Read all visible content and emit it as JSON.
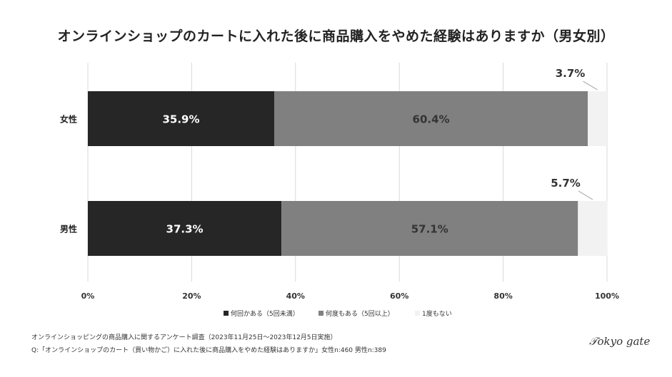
{
  "chart_data": {
    "type": "bar",
    "orientation": "horizontal",
    "stacked": true,
    "title": "オンラインショップのカートに入れた後に商品購入をやめた経験はありますか（男女別）",
    "categories": [
      "女性",
      "男性"
    ],
    "series": [
      {
        "name": "何回かある（5回未満）",
        "values": [
          35.9,
          37.3
        ],
        "labels": [
          "35.9%",
          "37.3%"
        ],
        "color": "#262626"
      },
      {
        "name": "何度もある（5回以上）",
        "values": [
          60.4,
          57.1
        ],
        "labels": [
          "60.4%",
          "57.1%"
        ],
        "color": "#808080"
      },
      {
        "name": "1度もない",
        "values": [
          3.7,
          5.7
        ],
        "labels": [
          "3.7%",
          "5.7%"
        ],
        "color": "#f2f2f2"
      }
    ],
    "xlim": [
      0,
      100
    ],
    "xticks": [
      "0%",
      "20%",
      "40%",
      "60%",
      "80%",
      "100%"
    ],
    "grid": true,
    "legend": "bottom"
  },
  "footer": {
    "line1": "オンラインショッピングの商品購入に関するアンケート調査（2023年11月25日〜2023年12月5日実施）",
    "line2": "Q:「オンラインショップのカート（買い物かご）に入れた後に商品購入をやめた経験はありますか」女性n:460 男性n:389"
  },
  "logo": "Tokyo gate"
}
